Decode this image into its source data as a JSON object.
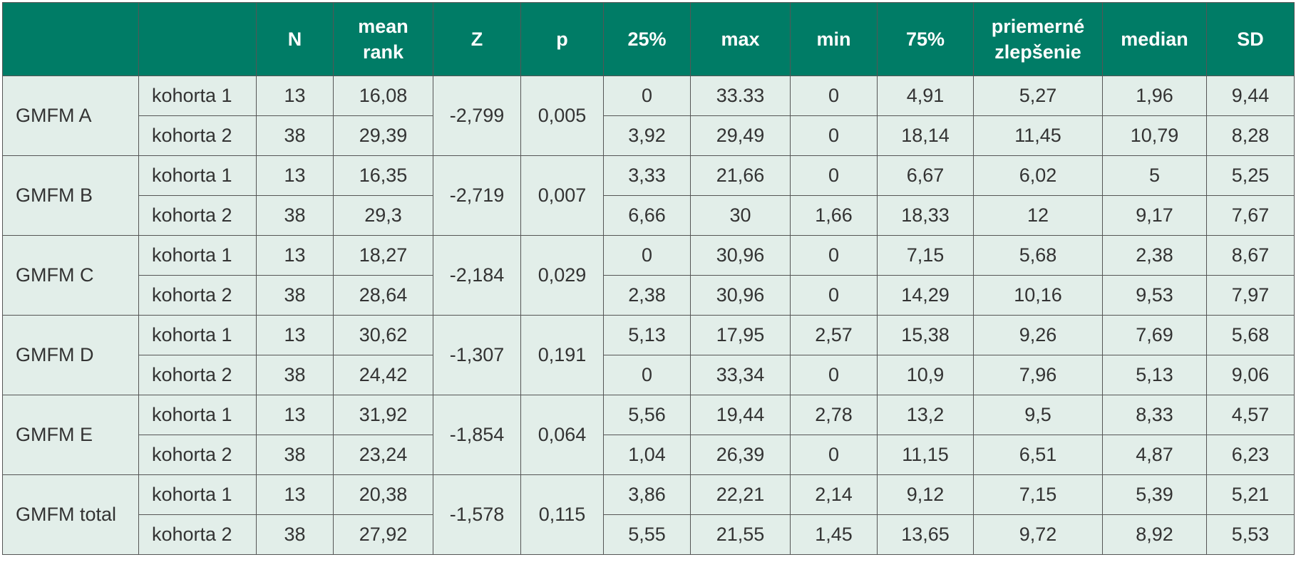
{
  "table": {
    "header": [
      "N",
      "mean rank",
      "Z",
      "p",
      "25%",
      "max",
      "min",
      "75%",
      "priemerné zlepšenie",
      "median",
      "SD"
    ],
    "groups": [
      {
        "label": "GMFM A",
        "z": "-2,799",
        "p": "0,005",
        "rows": [
          [
            "kohorta 1",
            "13",
            "16,08",
            "0",
            "33.33",
            "0",
            "4,91",
            "5,27",
            "1,96",
            "9,44"
          ],
          [
            "kohorta 2",
            "38",
            "29,39",
            "3,92",
            "29,49",
            "0",
            "18,14",
            "11,45",
            "10,79",
            "8,28"
          ]
        ]
      },
      {
        "label": "GMFM B",
        "z": "-2,719",
        "p": "0,007",
        "rows": [
          [
            "kohorta 1",
            "13",
            "16,35",
            "3,33",
            "21,66",
            "0",
            "6,67",
            "6,02",
            "5",
            "5,25"
          ],
          [
            "kohorta 2",
            "38",
            "29,3",
            "6,66",
            "30",
            "1,66",
            "18,33",
            "12",
            "9,17",
            "7,67"
          ]
        ]
      },
      {
        "label": "GMFM C",
        "z": "-2,184",
        "p": "0,029",
        "rows": [
          [
            "kohorta 1",
            "13",
            "18,27",
            "0",
            "30,96",
            "0",
            "7,15",
            "5,68",
            "2,38",
            "8,67"
          ],
          [
            "kohorta 2",
            "38",
            "28,64",
            "2,38",
            "30,96",
            "0",
            "14,29",
            "10,16",
            "9,53",
            "7,97"
          ]
        ]
      },
      {
        "label": "GMFM D",
        "z": "-1,307",
        "p": "0,191",
        "rows": [
          [
            "kohorta 1",
            "13",
            "30,62",
            "5,13",
            "17,95",
            "2,57",
            "15,38",
            "9,26",
            "7,69",
            "5,68"
          ],
          [
            "kohorta 2",
            "38",
            "24,42",
            "0",
            "33,34",
            "0",
            "10,9",
            "7,96",
            "5,13",
            "9,06"
          ]
        ]
      },
      {
        "label": "GMFM E",
        "z": "-1,854",
        "p": "0,064",
        "rows": [
          [
            "kohorta 1",
            "13",
            "31,92",
            "5,56",
            "19,44",
            "2,78",
            "13,2",
            "9,5",
            "8,33",
            "4,57"
          ],
          [
            "kohorta 2",
            "38",
            "23,24",
            "1,04",
            "26,39",
            "0",
            "11,15",
            "6,51",
            "4,87",
            "6,23"
          ]
        ]
      },
      {
        "label": "GMFM total",
        "z": "-1,578",
        "p": "0,115",
        "rows": [
          [
            "kohorta 1",
            "13",
            "20,38",
            "3,86",
            "22,21",
            "2,14",
            "9,12",
            "7,15",
            "5,39",
            "5,21"
          ],
          [
            "kohorta 2",
            "38",
            "27,92",
            "5,55",
            "21,55",
            "1,45",
            "13,65",
            "9,72",
            "8,92",
            "5,53"
          ]
        ]
      }
    ]
  }
}
